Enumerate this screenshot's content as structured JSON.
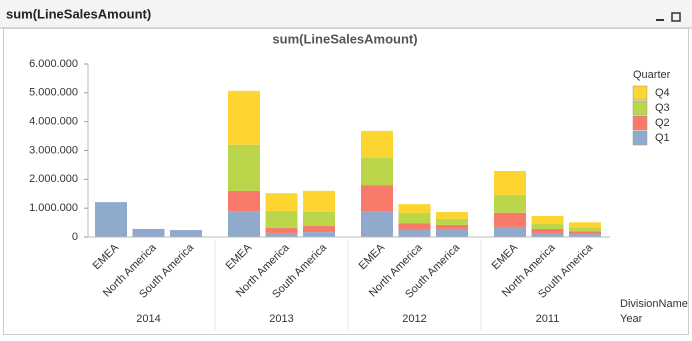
{
  "window": {
    "title": "sum(LineSalesAmount)"
  },
  "chart_data": {
    "type": "stacked-bar",
    "title": "sum(LineSalesAmount)",
    "groups": [
      {
        "name": "2014",
        "categories": [
          "EMEA",
          "North America",
          "South America"
        ]
      },
      {
        "name": "2013",
        "categories": [
          "EMEA",
          "North America",
          "South America"
        ]
      },
      {
        "name": "2012",
        "categories": [
          "EMEA",
          "North America",
          "South America"
        ]
      },
      {
        "name": "2011",
        "categories": [
          "EMEA",
          "North America",
          "South America"
        ]
      }
    ],
    "x_label": "DivisionName",
    "group_label": "Year",
    "legend_title": "Quarter",
    "series": [
      {
        "name": "Q1",
        "color": "#8faacc",
        "values": [
          1210000,
          280000,
          240000,
          900000,
          140000,
          170000,
          900000,
          240000,
          280000,
          350000,
          140000,
          100000
        ]
      },
      {
        "name": "Q2",
        "color": "#f87a6a",
        "values": [
          null,
          null,
          null,
          700000,
          170000,
          210000,
          900000,
          240000,
          140000,
          490000,
          140000,
          100000
        ]
      },
      {
        "name": "Q3",
        "color": "#bcd64c",
        "values": [
          null,
          null,
          null,
          1600000,
          590000,
          490000,
          940000,
          350000,
          210000,
          620000,
          170000,
          140000
        ]
      },
      {
        "name": "Q4",
        "color": "#fcd531",
        "values": [
          null,
          null,
          null,
          1870000,
          620000,
          730000,
          940000,
          310000,
          240000,
          830000,
          280000,
          170000
        ]
      }
    ],
    "ylim": [
      0,
      6000000
    ],
    "yticks": [
      0,
      {
        "value": 1000000,
        "label": "1.000.000"
      },
      {
        "value": 2000000,
        "label": "2.000.000"
      },
      {
        "value": 3000000,
        "label": "3.000.000"
      },
      {
        "value": 4000000,
        "label": "4.000.000"
      },
      {
        "value": 5000000,
        "label": "5.000.000"
      },
      {
        "value": 6000000,
        "label": "6.000.000"
      }
    ]
  }
}
